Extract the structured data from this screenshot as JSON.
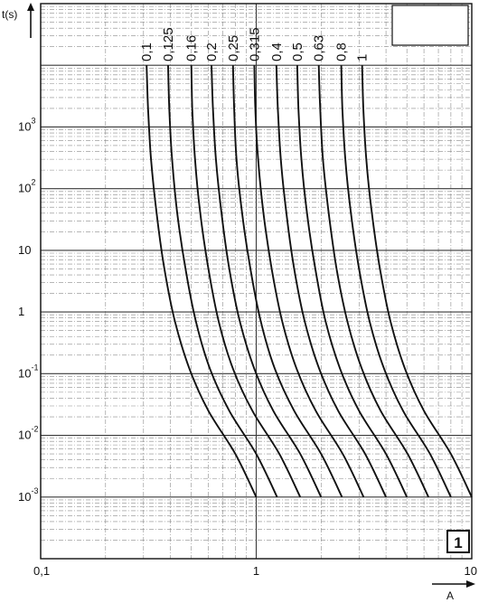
{
  "chart_data": {
    "type": "line",
    "title": "",
    "xlabel": "A",
    "ylabel": "t(s)",
    "x_scale": "log",
    "y_scale": "log",
    "xlim": [
      0.1,
      10
    ],
    "ylim": [
      0.0001,
      100000
    ],
    "x_ticks": [
      {
        "value": 0.1,
        "label": "0,1"
      },
      {
        "value": 1,
        "label": "1"
      },
      {
        "value": 10,
        "label": "10"
      }
    ],
    "y_ticks": [
      {
        "value": 1000,
        "base": "10",
        "exp": "3"
      },
      {
        "value": 100,
        "base": "10",
        "exp": "2"
      },
      {
        "value": 10,
        "base": "10",
        "exp": ""
      },
      {
        "value": 1,
        "base": "1",
        "exp": ""
      },
      {
        "value": 0.1,
        "base": "10",
        "exp": "-1"
      },
      {
        "value": 0.01,
        "base": "10",
        "exp": "-2"
      },
      {
        "value": 0.001,
        "base": "10",
        "exp": "-3"
      }
    ],
    "grid": true,
    "badge": "1",
    "series": [
      {
        "name": "0,1",
        "values": [
          [
            0.31,
            10000
          ],
          [
            0.315,
            2000
          ],
          [
            0.325,
            300
          ],
          [
            0.345,
            40
          ],
          [
            0.375,
            5
          ],
          [
            0.42,
            0.7
          ],
          [
            0.49,
            0.12
          ],
          [
            0.6,
            0.025
          ],
          [
            0.8,
            0.005
          ],
          [
            1.0,
            0.001
          ]
        ]
      },
      {
        "name": "0,125",
        "values": [
          [
            0.39,
            10000
          ],
          [
            0.395,
            2000
          ],
          [
            0.407,
            300
          ],
          [
            0.43,
            40
          ],
          [
            0.47,
            5
          ],
          [
            0.525,
            0.7
          ],
          [
            0.61,
            0.12
          ],
          [
            0.75,
            0.025
          ],
          [
            1.0,
            0.005
          ],
          [
            1.25,
            0.001
          ]
        ]
      },
      {
        "name": "0,16",
        "values": [
          [
            0.5,
            10000
          ],
          [
            0.505,
            2000
          ],
          [
            0.52,
            300
          ],
          [
            0.55,
            40
          ],
          [
            0.6,
            5
          ],
          [
            0.67,
            0.7
          ],
          [
            0.78,
            0.12
          ],
          [
            0.96,
            0.025
          ],
          [
            1.28,
            0.005
          ],
          [
            1.6,
            0.001
          ]
        ]
      },
      {
        "name": "0,2",
        "values": [
          [
            0.62,
            10000
          ],
          [
            0.63,
            2000
          ],
          [
            0.65,
            300
          ],
          [
            0.69,
            40
          ],
          [
            0.75,
            5
          ],
          [
            0.84,
            0.7
          ],
          [
            0.98,
            0.12
          ],
          [
            1.2,
            0.025
          ],
          [
            1.6,
            0.005
          ],
          [
            2.0,
            0.001
          ]
        ]
      },
      {
        "name": "0,25",
        "values": [
          [
            0.78,
            10000
          ],
          [
            0.79,
            2000
          ],
          [
            0.81,
            300
          ],
          [
            0.86,
            40
          ],
          [
            0.94,
            5
          ],
          [
            1.05,
            0.7
          ],
          [
            1.22,
            0.12
          ],
          [
            1.5,
            0.025
          ],
          [
            2.0,
            0.005
          ],
          [
            2.5,
            0.001
          ]
        ]
      },
      {
        "name": "0,315",
        "values": [
          [
            0.98,
            10000
          ],
          [
            0.99,
            2000
          ],
          [
            1.02,
            300
          ],
          [
            1.08,
            40
          ],
          [
            1.18,
            5
          ],
          [
            1.32,
            0.7
          ],
          [
            1.54,
            0.12
          ],
          [
            1.89,
            0.025
          ],
          [
            2.52,
            0.005
          ],
          [
            3.15,
            0.001
          ]
        ]
      },
      {
        "name": "0,4",
        "values": [
          [
            1.24,
            10000
          ],
          [
            1.26,
            2000
          ],
          [
            1.3,
            300
          ],
          [
            1.38,
            40
          ],
          [
            1.5,
            5
          ],
          [
            1.68,
            0.7
          ],
          [
            1.96,
            0.12
          ],
          [
            2.4,
            0.025
          ],
          [
            3.2,
            0.005
          ],
          [
            4.0,
            0.001
          ]
        ]
      },
      {
        "name": "0,5",
        "values": [
          [
            1.55,
            10000
          ],
          [
            1.57,
            2000
          ],
          [
            1.62,
            300
          ],
          [
            1.72,
            40
          ],
          [
            1.88,
            5
          ],
          [
            2.1,
            0.7
          ],
          [
            2.45,
            0.12
          ],
          [
            3.0,
            0.025
          ],
          [
            4.0,
            0.005
          ],
          [
            5.0,
            0.001
          ]
        ]
      },
      {
        "name": "0,63",
        "values": [
          [
            1.95,
            10000
          ],
          [
            1.98,
            2000
          ],
          [
            2.04,
            300
          ],
          [
            2.17,
            40
          ],
          [
            2.36,
            5
          ],
          [
            2.65,
            0.7
          ],
          [
            3.09,
            0.12
          ],
          [
            3.78,
            0.025
          ],
          [
            5.04,
            0.005
          ],
          [
            6.3,
            0.001
          ]
        ]
      },
      {
        "name": "0,8",
        "values": [
          [
            2.48,
            10000
          ],
          [
            2.51,
            2000
          ],
          [
            2.59,
            300
          ],
          [
            2.75,
            40
          ],
          [
            3.0,
            5
          ],
          [
            3.36,
            0.7
          ],
          [
            3.92,
            0.12
          ],
          [
            4.8,
            0.025
          ],
          [
            6.4,
            0.005
          ],
          [
            8.0,
            0.001
          ]
        ]
      },
      {
        "name": "1",
        "values": [
          [
            3.1,
            10000
          ],
          [
            3.14,
            2000
          ],
          [
            3.24,
            300
          ],
          [
            3.44,
            40
          ],
          [
            3.75,
            5
          ],
          [
            4.2,
            0.7
          ],
          [
            4.9,
            0.12
          ],
          [
            6.0,
            0.025
          ],
          [
            8.0,
            0.005
          ],
          [
            10.0,
            0.001
          ]
        ]
      }
    ]
  }
}
